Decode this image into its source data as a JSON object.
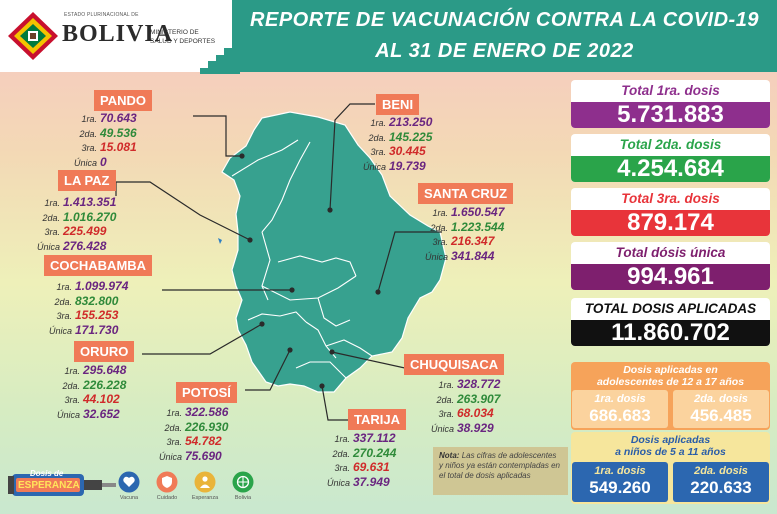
{
  "header": {
    "gov_line": "ESTADO PLURINACIONAL DE",
    "country": "BOLIVIA",
    "ministry_line1": "MINISTERIO DE",
    "ministry_line2": "SALUD Y DEPORTES",
    "title_line1": "REPORTE DE VACUNACIÓN CONTRA LA COVID-19",
    "title_line2": "AL 31 DE ENERO DE 2022"
  },
  "row_labels": {
    "d1": "1ra.",
    "d2": "2da.",
    "d3": "3ra.",
    "du": "Única"
  },
  "departments": {
    "pando": {
      "name": "PANDO",
      "d1": "70.643",
      "d2": "49.536",
      "d3": "15.081",
      "du": "0"
    },
    "beni": {
      "name": "BENI",
      "d1": "213.250",
      "d2": "145.225",
      "d3": "30.445",
      "du": "19.739"
    },
    "la_paz": {
      "name": "LA PAZ",
      "d1": "1.413.351",
      "d2": "1.016.270",
      "d3": "225.499",
      "du": "276.428"
    },
    "santa_cruz": {
      "name": "SANTA CRUZ",
      "d1": "1.650.547",
      "d2": "1.223.544",
      "d3": "216.347",
      "du": "341.844"
    },
    "cochabamba": {
      "name": "COCHABAMBA",
      "d1": "1.099.974",
      "d2": "832.800",
      "d3": "155.253",
      "du": "171.730"
    },
    "oruro": {
      "name": "ORURO",
      "d1": "295.648",
      "d2": "226.228",
      "d3": "44.102",
      "du": "32.652"
    },
    "chuquisaca": {
      "name": "CHUQUISACA",
      "d1": "328.772",
      "d2": "263.907",
      "d3": "68.034",
      "du": "38.929"
    },
    "potosi": {
      "name": "POTOSÍ",
      "d1": "322.586",
      "d2": "226.930",
      "d3": "54.782",
      "du": "75.690"
    },
    "tarija": {
      "name": "TARIJA",
      "d1": "337.112",
      "d2": "270.244",
      "d3": "69.631",
      "du": "37.949"
    }
  },
  "totals": {
    "first": {
      "label": "Total 1ra. dosis",
      "value": "5.731.883"
    },
    "second": {
      "label": "Total 2da. dosis",
      "value": "4.254.684"
    },
    "third": {
      "label": "Total 3ra. dosis",
      "value": "879.174"
    },
    "single": {
      "label": "Total dósis única",
      "value": "994.961"
    },
    "applied": {
      "label": "TOTAL DOSIS APLICADAS",
      "value": "11.860.702"
    }
  },
  "adolescents": {
    "title_line1": "Dosis aplicadas en",
    "title_line2": "adolescentes de 12 a 17 años",
    "first_label": "1ra. dosis",
    "first_value": "686.683",
    "second_label": "2da. dosis",
    "second_value": "456.485"
  },
  "children": {
    "title_line1": "Dosis aplicadas",
    "title_line2": "a niños de 5 a 11 años",
    "first_label": "1ra. dosis",
    "first_value": "549.260",
    "second_label": "2da. dosis",
    "second_value": "220.633"
  },
  "note": {
    "label": "Nota:",
    "text": "Las cifras de adolescentes y niños ya están contempladas en el total de dosis aplicadas"
  },
  "footer": {
    "logo_text_line1": "Dosis de",
    "logo_text_line2": "ESPERANZA",
    "icons": [
      {
        "name": "heart-icon",
        "label": "Vacuna"
      },
      {
        "name": "shield-icon",
        "label": "Cuidado"
      },
      {
        "name": "person-icon",
        "label": "Esperanza"
      },
      {
        "name": "globe-icon",
        "label": "Bolivia"
      }
    ]
  },
  "colors": {
    "header_teal": "#2b9a87",
    "label_orange": "#f07a57",
    "map_teal": "#37a18f",
    "first_dose": "#8e2f8d",
    "second_dose": "#2aa44a",
    "third_dose": "#e8343a",
    "single_dose": "#7e1f6e",
    "total_applied": "#111111"
  }
}
